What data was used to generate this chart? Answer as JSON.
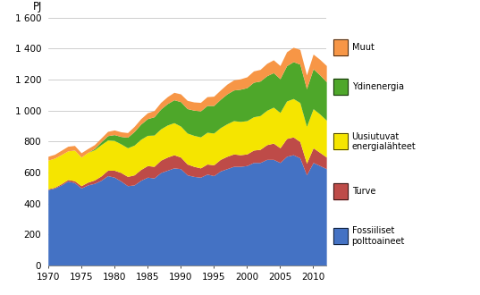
{
  "years": [
    1970,
    1971,
    1972,
    1973,
    1974,
    1975,
    1976,
    1977,
    1978,
    1979,
    1980,
    1981,
    1982,
    1983,
    1984,
    1985,
    1986,
    1987,
    1988,
    1989,
    1990,
    1991,
    1992,
    1993,
    1994,
    1995,
    1996,
    1997,
    1998,
    1999,
    2000,
    2001,
    2002,
    2003,
    2004,
    2005,
    2006,
    2007,
    2008,
    2009,
    2010,
    2011,
    2012
  ],
  "fossiiliset": [
    490,
    500,
    520,
    545,
    535,
    500,
    520,
    530,
    550,
    580,
    570,
    545,
    515,
    520,
    550,
    570,
    565,
    600,
    615,
    630,
    625,
    585,
    575,
    570,
    590,
    580,
    610,
    625,
    640,
    640,
    645,
    665,
    665,
    685,
    685,
    665,
    705,
    715,
    695,
    585,
    665,
    645,
    625
  ],
  "turve": [
    5,
    5,
    8,
    10,
    12,
    15,
    18,
    22,
    28,
    35,
    45,
    55,
    60,
    65,
    70,
    75,
    75,
    80,
    85,
    85,
    75,
    70,
    65,
    60,
    65,
    70,
    75,
    80,
    80,
    75,
    75,
    80,
    85,
    95,
    105,
    95,
    115,
    115,
    105,
    75,
    95,
    85,
    75
  ],
  "uusiutuvat": [
    185,
    188,
    188,
    185,
    198,
    185,
    192,
    195,
    202,
    195,
    192,
    185,
    185,
    192,
    195,
    195,
    202,
    202,
    207,
    207,
    200,
    200,
    200,
    200,
    205,
    205,
    205,
    210,
    215,
    215,
    215,
    215,
    218,
    222,
    232,
    228,
    242,
    248,
    252,
    238,
    252,
    248,
    238
  ],
  "ydinenergia": [
    0,
    0,
    0,
    0,
    0,
    0,
    0,
    8,
    18,
    28,
    38,
    48,
    68,
    88,
    98,
    108,
    118,
    128,
    138,
    148,
    158,
    158,
    163,
    168,
    173,
    178,
    183,
    193,
    198,
    208,
    213,
    223,
    223,
    223,
    223,
    218,
    228,
    238,
    248,
    243,
    258,
    253,
    248
  ],
  "muut": [
    25,
    25,
    28,
    30,
    30,
    28,
    25,
    25,
    25,
    28,
    30,
    30,
    30,
    33,
    35,
    38,
    40,
    43,
    45,
    48,
    50,
    53,
    53,
    55,
    57,
    60,
    60,
    63,
    65,
    67,
    70,
    73,
    75,
    80,
    83,
    85,
    90,
    93,
    95,
    90,
    95,
    100,
    105
  ],
  "colors": {
    "fossiiliset": "#4472C4",
    "turve": "#BE4B48",
    "uusiutuvat": "#F5E500",
    "ydinenergia": "#4EA72A",
    "muut": "#F79646"
  },
  "labels": {
    "fossiiliset": "Fossiiliset\npolttoaineet",
    "turve": "Turve",
    "uusiutuvat": "Uusiutuvat\nenergialähteet",
    "ydinenergia": "Ydinenergia",
    "muut": "Muut"
  },
  "ylabel": "PJ",
  "ylim": [
    0,
    1600
  ],
  "yticks": [
    0,
    200,
    400,
    600,
    800,
    1000,
    1200,
    1400,
    1600
  ],
  "xlim": [
    1970,
    2012
  ],
  "xticks": [
    1970,
    1975,
    1980,
    1985,
    1990,
    1995,
    2000,
    2005,
    2010
  ],
  "xticklabels": [
    "1970",
    "1975",
    "1980",
    "1985",
    "1990",
    "1995",
    "2000",
    "2005",
    "2010"
  ]
}
